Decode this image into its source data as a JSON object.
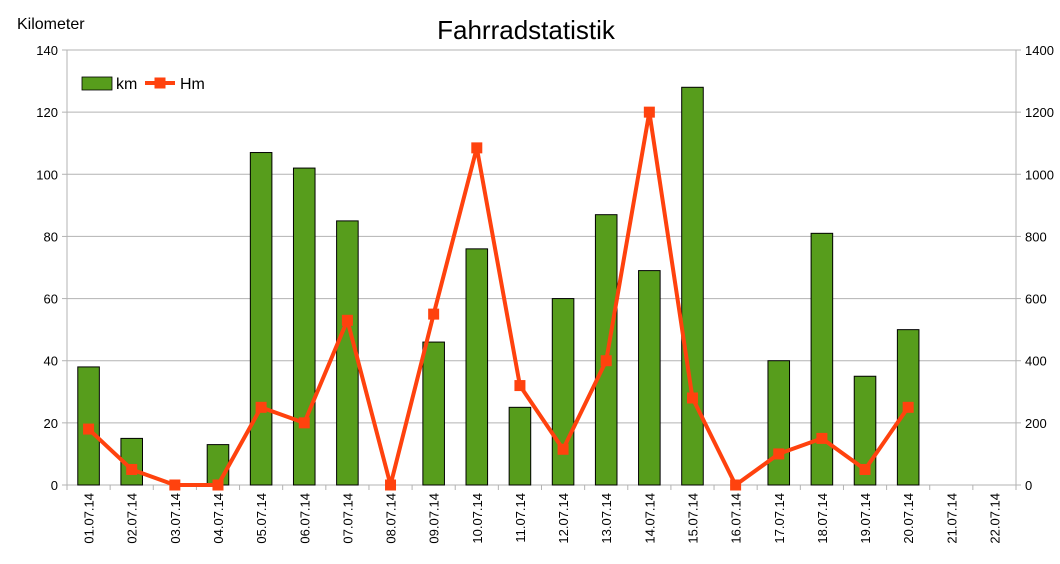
{
  "chart_data": {
    "type": "bar",
    "title": "Fahrradstatistik",
    "ylabel": "Kilometer",
    "y2label": "",
    "xlabel": "",
    "categories": [
      "01.07.14",
      "02.07.14",
      "03.07.14",
      "04.07.14",
      "05.07.14",
      "06.07.14",
      "07.07.14",
      "08.07.14",
      "09.07.14",
      "10.07.14",
      "11.07.14",
      "12.07.14",
      "13.07.14",
      "14.07.14",
      "15.07.14",
      "16.07.14",
      "17.07.14",
      "18.07.14",
      "19.07.14",
      "20.07.14",
      "21.07.14",
      "22.07.14"
    ],
    "ylim": [
      0,
      140
    ],
    "y2lim": [
      0,
      1400
    ],
    "yticks": [
      0,
      20,
      40,
      60,
      80,
      100,
      120,
      140
    ],
    "y2ticks": [
      0,
      200,
      400,
      600,
      800,
      1000,
      1200,
      1400
    ],
    "grid": true,
    "legend_position": "top-left",
    "series": [
      {
        "name": "km",
        "type": "bar",
        "axis": "left",
        "color": "#579d1c",
        "values": [
          38,
          15,
          0,
          13,
          107,
          102,
          85,
          0,
          46,
          76,
          25,
          60,
          87,
          69,
          128,
          0,
          40,
          81,
          35,
          50,
          null,
          null
        ]
      },
      {
        "name": "Hm",
        "type": "line",
        "axis": "right",
        "color": "#ff420e",
        "marker": "square",
        "values": [
          180,
          50,
          0,
          0,
          250,
          200,
          530,
          0,
          550,
          1085,
          320,
          115,
          400,
          1200,
          280,
          0,
          100,
          150,
          50,
          250,
          null,
          null
        ]
      }
    ]
  }
}
